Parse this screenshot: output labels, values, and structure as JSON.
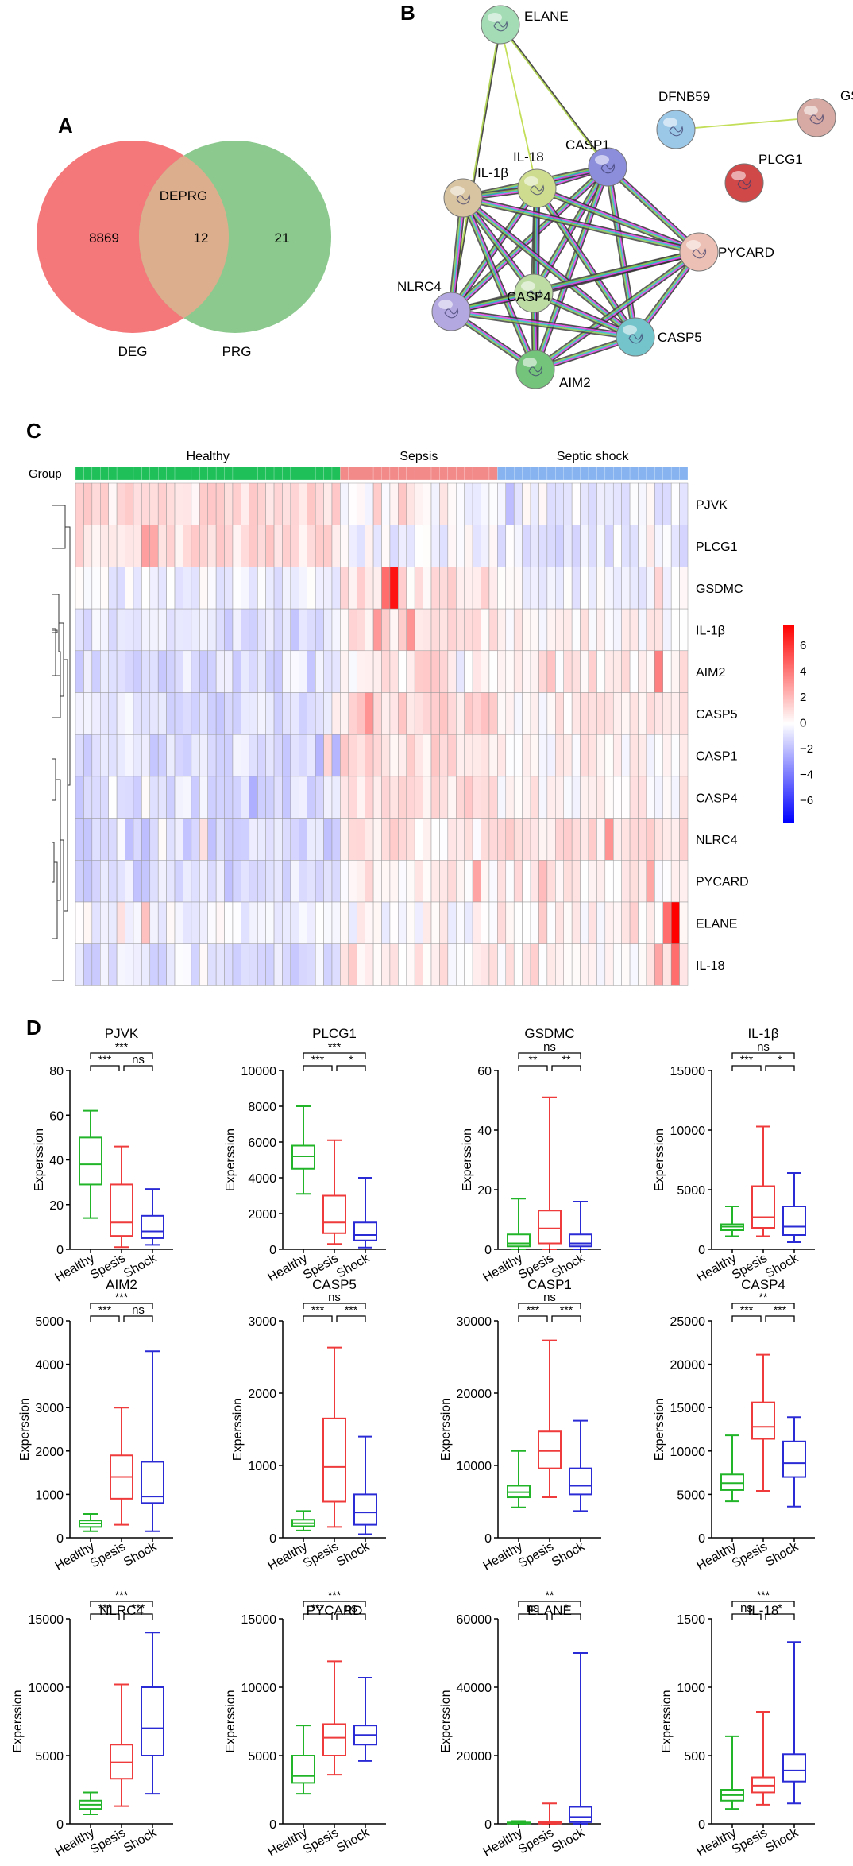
{
  "panels": {
    "A": {
      "label": "A",
      "title": "DEPRG",
      "left_count": "8869",
      "overlap_count": "12",
      "right_count": "21",
      "left_name": "DEG",
      "right_name": "PRG",
      "left_color": "#f4777a",
      "right_color": "#8cc98e",
      "overlap_color": "#dcae8e"
    },
    "B": {
      "label": "B",
      "nodes": [
        {
          "id": "ELANE",
          "label": "ELANE",
          "color": "#a4dcb6"
        },
        {
          "id": "CASP1",
          "label": "CASP1",
          "color": "#8c8edc"
        },
        {
          "id": "IL18",
          "label": "IL-18",
          "color": "#cddc8e"
        },
        {
          "id": "IL1B",
          "label": "IL-1β",
          "color": "#d8c4a0"
        },
        {
          "id": "DFNB59",
          "label": "DFNB59",
          "color": "#9cc8e8"
        },
        {
          "id": "GSDMC",
          "label": "GSDMC",
          "color": "#d8aaa4"
        },
        {
          "id": "PLCG1",
          "label": "PLCG1",
          "color": "#d04848"
        },
        {
          "id": "PYCARD",
          "label": "PYCARD",
          "color": "#ecc0b4"
        },
        {
          "id": "CASP4",
          "label": "CASP4",
          "color": "#bcdca4"
        },
        {
          "id": "NLRC4",
          "label": "NLRC4",
          "color": "#b4a8e0"
        },
        {
          "id": "CASP5",
          "label": "CASP5",
          "color": "#74c4cc"
        },
        {
          "id": "AIM2",
          "label": "AIM2",
          "color": "#74c47c"
        }
      ],
      "edges": [
        [
          "ELANE",
          "CASP1",
          "bg"
        ],
        [
          "ELANE",
          "IL18",
          "y"
        ],
        [
          "ELANE",
          "NLRC4",
          "bg"
        ],
        [
          "DFNB59",
          "GSDMC",
          "y"
        ],
        [
          "CASP1",
          "IL18",
          "m"
        ],
        [
          "CASP1",
          "IL1B",
          "m"
        ],
        [
          "CASP1",
          "PYCARD",
          "m"
        ],
        [
          "CASP1",
          "CASP4",
          "m"
        ],
        [
          "CASP1",
          "NLRC4",
          "m"
        ],
        [
          "CASP1",
          "CASP5",
          "m"
        ],
        [
          "CASP1",
          "AIM2",
          "m"
        ],
        [
          "IL18",
          "IL1B",
          "m"
        ],
        [
          "IL18",
          "PYCARD",
          "m"
        ],
        [
          "IL18",
          "CASP4",
          "m"
        ],
        [
          "IL18",
          "NLRC4",
          "m"
        ],
        [
          "IL18",
          "CASP5",
          "m"
        ],
        [
          "IL18",
          "AIM2",
          "m"
        ],
        [
          "IL1B",
          "PYCARD",
          "m"
        ],
        [
          "IL1B",
          "CASP4",
          "m"
        ],
        [
          "IL1B",
          "NLRC4",
          "m"
        ],
        [
          "IL1B",
          "CASP5",
          "m"
        ],
        [
          "IL1B",
          "AIM2",
          "m"
        ],
        [
          "PYCARD",
          "CASP4",
          "m"
        ],
        [
          "PYCARD",
          "NLRC4",
          "m"
        ],
        [
          "PYCARD",
          "CASP5",
          "m"
        ],
        [
          "PYCARD",
          "AIM2",
          "m"
        ],
        [
          "CASP4",
          "NLRC4",
          "m"
        ],
        [
          "CASP4",
          "CASP5",
          "m"
        ],
        [
          "CASP4",
          "AIM2",
          "m"
        ],
        [
          "NLRC4",
          "CASP5",
          "m"
        ],
        [
          "NLRC4",
          "AIM2",
          "m"
        ],
        [
          "CASP5",
          "AIM2",
          "m"
        ]
      ]
    },
    "C": {
      "label": "C",
      "group_label": "Group",
      "groups": [
        {
          "name": "Healthy",
          "count": 32,
          "color": "#1fbf5a"
        },
        {
          "name": "Sepsis",
          "count": 19,
          "color": "#f28a8a"
        },
        {
          "name": "Septic shock",
          "count": 23,
          "color": "#87b4f0"
        }
      ],
      "genes": [
        "PJVK",
        "PLCG1",
        "GSDMC",
        "IL-1β",
        "AIM2",
        "CASP5",
        "CASP1",
        "CASP4",
        "NLRC4",
        "PYCARD",
        "ELANE",
        "IL-18"
      ],
      "profile": {
        "PJVK": [
          0.9,
          0.1,
          -0.4
        ],
        "PLCG1": [
          0.9,
          -0.3,
          -0.6
        ],
        "GSDMC": [
          -0.5,
          0.7,
          -0.2
        ],
        "IL-1β": [
          -0.8,
          0.8,
          0.2
        ],
        "AIM2": [
          -0.8,
          0.5,
          0.5
        ],
        "CASP5": [
          -0.9,
          1.0,
          0.3
        ],
        "CASP1": [
          -0.9,
          0.9,
          0.3
        ],
        "CASP4": [
          -0.9,
          0.9,
          0.3
        ],
        "NLRC4": [
          -1.1,
          0.5,
          0.8
        ],
        "PYCARD": [
          -1.0,
          0.5,
          0.4
        ],
        "ELANE": [
          -0.3,
          0.0,
          0.4
        ],
        "IL-18": [
          -0.8,
          0.4,
          0.4
        ]
      },
      "hotspots": [
        {
          "gene": "GSDMC",
          "col": 38,
          "value": 6.5
        },
        {
          "gene": "GSDMC",
          "col": 37,
          "value": 4
        },
        {
          "gene": "ELANE",
          "col": 72,
          "value": 7
        },
        {
          "gene": "ELANE",
          "col": 71,
          "value": 4
        },
        {
          "gene": "IL-18",
          "col": 72,
          "value": 4
        },
        {
          "gene": "AIM2",
          "col": 70,
          "value": 3.5
        },
        {
          "gene": "CASP5",
          "col": 35,
          "value": 3
        },
        {
          "gene": "IL-1β",
          "col": 40,
          "value": 3
        },
        {
          "gene": "PYCARD",
          "col": 48,
          "value": 2.5
        }
      ],
      "colorbar": {
        "ticks": [
          "6",
          "4",
          "2",
          "0",
          "−2",
          "−4",
          "−6"
        ],
        "min": -7,
        "max": 7
      }
    },
    "D": {
      "label": "D",
      "ylabel": "Experssion",
      "categories": [
        "Healthy",
        "Spesis",
        "Shock"
      ],
      "colors": [
        "#22b52a",
        "#ef3b3b",
        "#2b2bd6"
      ],
      "plots": [
        {
          "title": "PJVK",
          "ymax": 80,
          "ticks": [
            "0",
            "20",
            "40",
            "60",
            "80"
          ],
          "boxes": [
            [
              14,
              29,
              38,
              50,
              62
            ],
            [
              1,
              6,
              12,
              29,
              46
            ],
            [
              2,
              5,
              8,
              15,
              27
            ]
          ],
          "sig": [
            {
              "a": 0,
              "b": 2,
              "t": "***"
            },
            {
              "a": 0,
              "b": 1,
              "t": "***"
            },
            {
              "a": 1,
              "b": 2,
              "t": "ns"
            }
          ]
        },
        {
          "title": "PLCG1",
          "ymax": 10000,
          "ticks": [
            "0",
            "2000",
            "4000",
            "6000",
            "8000",
            "10000"
          ],
          "boxes": [
            [
              3100,
              4500,
              5200,
              5800,
              8000
            ],
            [
              300,
              900,
              1500,
              3000,
              6100
            ],
            [
              100,
              500,
              800,
              1500,
              4000
            ]
          ],
          "sig": [
            {
              "a": 0,
              "b": 2,
              "t": "***"
            },
            {
              "a": 0,
              "b": 1,
              "t": "***"
            },
            {
              "a": 1,
              "b": 2,
              "t": "*"
            }
          ]
        },
        {
          "title": "GSDMC",
          "ymax": 60,
          "ticks": [
            "0",
            "20",
            "40",
            "60"
          ],
          "boxes": [
            [
              0,
              1,
              2,
              5,
              17
            ],
            [
              0,
              2,
              7,
              13,
              51
            ],
            [
              0,
              1,
              2,
              5,
              16
            ]
          ],
          "sig": [
            {
              "a": 0,
              "b": 2,
              "t": "ns"
            },
            {
              "a": 0,
              "b": 1,
              "t": "**"
            },
            {
              "a": 1,
              "b": 2,
              "t": "**"
            }
          ]
        },
        {
          "title": "IL-1β",
          "ymax": 15000,
          "ticks": [
            "0",
            "5000",
            "10000",
            "15000"
          ],
          "boxes": [
            [
              1100,
              1600,
              1900,
              2100,
              3600
            ],
            [
              1100,
              1800,
              2700,
              5300,
              10300
            ],
            [
              600,
              1200,
              1900,
              3600,
              6400
            ]
          ],
          "sig": [
            {
              "a": 0,
              "b": 2,
              "t": "ns"
            },
            {
              "a": 0,
              "b": 1,
              "t": "***"
            },
            {
              "a": 1,
              "b": 2,
              "t": "*"
            }
          ]
        },
        {
          "title": "AIM2",
          "ymax": 5000,
          "ticks": [
            "0",
            "1000",
            "2000",
            "3000",
            "4000",
            "5000"
          ],
          "boxes": [
            [
              150,
              250,
              330,
              400,
              550
            ],
            [
              300,
              900,
              1400,
              1900,
              3000
            ],
            [
              150,
              800,
              950,
              1750,
              4300
            ]
          ],
          "sig": [
            {
              "a": 0,
              "b": 2,
              "t": "***"
            },
            {
              "a": 0,
              "b": 1,
              "t": "***"
            },
            {
              "a": 1,
              "b": 2,
              "t": "ns"
            }
          ]
        },
        {
          "title": "CASP5",
          "ymax": 3000,
          "ticks": [
            "0",
            "1000",
            "2000",
            "3000"
          ],
          "boxes": [
            [
              100,
              160,
              200,
              250,
              370
            ],
            [
              150,
              500,
              980,
              1650,
              2630
            ],
            [
              50,
              180,
              350,
              600,
              1400
            ]
          ],
          "sig": [
            {
              "a": 0,
              "b": 2,
              "t": "ns"
            },
            {
              "a": 0,
              "b": 1,
              "t": "***"
            },
            {
              "a": 1,
              "b": 2,
              "t": "***"
            }
          ]
        },
        {
          "title": "CASP1",
          "ymax": 30000,
          "ticks": [
            "0",
            "10000",
            "20000",
            "30000"
          ],
          "boxes": [
            [
              4200,
              5600,
              6300,
              7200,
              12000
            ],
            [
              5600,
              9600,
              12000,
              14700,
              27300
            ],
            [
              3700,
              6000,
              7200,
              9600,
              16200
            ]
          ],
          "sig": [
            {
              "a": 0,
              "b": 2,
              "t": "ns"
            },
            {
              "a": 0,
              "b": 1,
              "t": "***"
            },
            {
              "a": 1,
              "b": 2,
              "t": "***"
            }
          ]
        },
        {
          "title": "CASP4",
          "ymax": 25000,
          "ticks": [
            "0",
            "5000",
            "10000",
            "15000",
            "20000",
            "25000"
          ],
          "boxes": [
            [
              4200,
              5500,
              6300,
              7300,
              11800
            ],
            [
              5400,
              11400,
              12800,
              15600,
              21100
            ],
            [
              3600,
              7000,
              8600,
              11100,
              13900
            ]
          ],
          "sig": [
            {
              "a": 0,
              "b": 2,
              "t": "**"
            },
            {
              "a": 0,
              "b": 1,
              "t": "***"
            },
            {
              "a": 1,
              "b": 2,
              "t": "***"
            }
          ]
        },
        {
          "title": "NLRC4",
          "ymax": 15000,
          "ticks": [
            "0",
            "5000",
            "10000",
            "15000"
          ],
          "boxes": [
            [
              700,
              1100,
              1400,
              1700,
              2300
            ],
            [
              1300,
              3300,
              4500,
              5800,
              10200
            ],
            [
              2200,
              5000,
              7000,
              10000,
              14000
            ]
          ],
          "sig": [
            {
              "a": 0,
              "b": 2,
              "t": "***"
            },
            {
              "a": 0,
              "b": 1,
              "t": "***"
            },
            {
              "a": 1,
              "b": 2,
              "t": "***"
            }
          ]
        },
        {
          "title": "PYCARD",
          "ymax": 15000,
          "ticks": [
            "0",
            "5000",
            "10000",
            "15000"
          ],
          "boxes": [
            [
              2200,
              3000,
              3500,
              5000,
              7200
            ],
            [
              3600,
              5000,
              6300,
              7300,
              11900
            ],
            [
              4600,
              5800,
              6500,
              7200,
              10700
            ]
          ],
          "sig": [
            {
              "a": 0,
              "b": 2,
              "t": "***"
            },
            {
              "a": 0,
              "b": 1,
              "t": "***"
            },
            {
              "a": 1,
              "b": 2,
              "t": "ns"
            }
          ]
        },
        {
          "title": "ELANE",
          "ymax": 60000,
          "ticks": [
            "0",
            "20000",
            "40000",
            "60000"
          ],
          "boxes": [
            [
              0,
              100,
              200,
              400,
              800
            ],
            [
              0,
              100,
              300,
              700,
              6000
            ],
            [
              0,
              500,
              2000,
              5000,
              50000
            ]
          ],
          "sig": [
            {
              "a": 0,
              "b": 2,
              "t": "**"
            },
            {
              "a": 0,
              "b": 1,
              "t": "ns"
            },
            {
              "a": 1,
              "b": 2,
              "t": "*"
            }
          ]
        },
        {
          "title": "IL-18",
          "ymax": 1500,
          "ticks": [
            "0",
            "500",
            "1000",
            "1500"
          ],
          "boxes": [
            [
              110,
              170,
              210,
              250,
              640
            ],
            [
              140,
              230,
              280,
              340,
              820
            ],
            [
              150,
              310,
              390,
              510,
              1330
            ]
          ],
          "sig": [
            {
              "a": 0,
              "b": 2,
              "t": "***"
            },
            {
              "a": 0,
              "b": 1,
              "t": "ns"
            },
            {
              "a": 1,
              "b": 2,
              "t": "*"
            }
          ]
        }
      ]
    }
  }
}
